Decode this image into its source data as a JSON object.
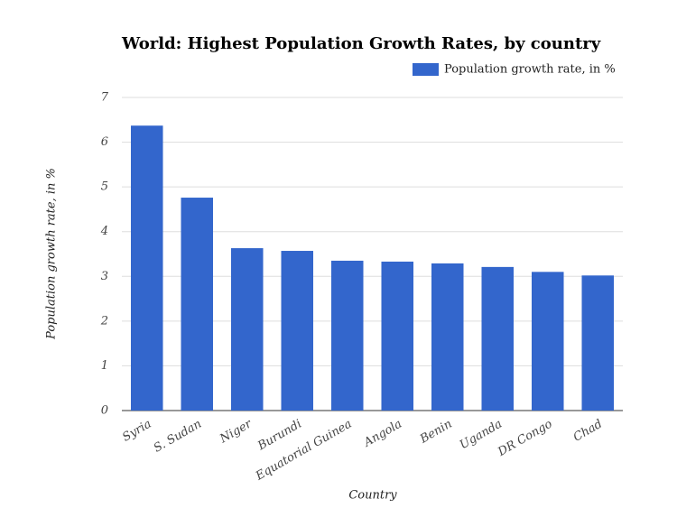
{
  "chart_data": {
    "type": "bar",
    "title": "World: Highest Population Growth Rates, by country",
    "x_label": "Country",
    "y_label": "Population growth rate, in %",
    "categories": [
      "Syria",
      "S. Sudan",
      "Niger",
      "Burundi",
      "Equatorial Guinea",
      "Angola",
      "Benin",
      "Uganda",
      "DR Congo",
      "Chad"
    ],
    "series": [
      {
        "name": "Population growth rate, in %",
        "color": "#3366cc",
        "values": [
          6.37,
          4.76,
          3.63,
          3.57,
          3.35,
          3.33,
          3.29,
          3.21,
          3.1,
          3.02
        ]
      }
    ],
    "ylim": [
      0,
      7
    ],
    "yticks": [
      0,
      1,
      2,
      3,
      4,
      5,
      6,
      7
    ],
    "grid": true,
    "legend": "top-right"
  }
}
